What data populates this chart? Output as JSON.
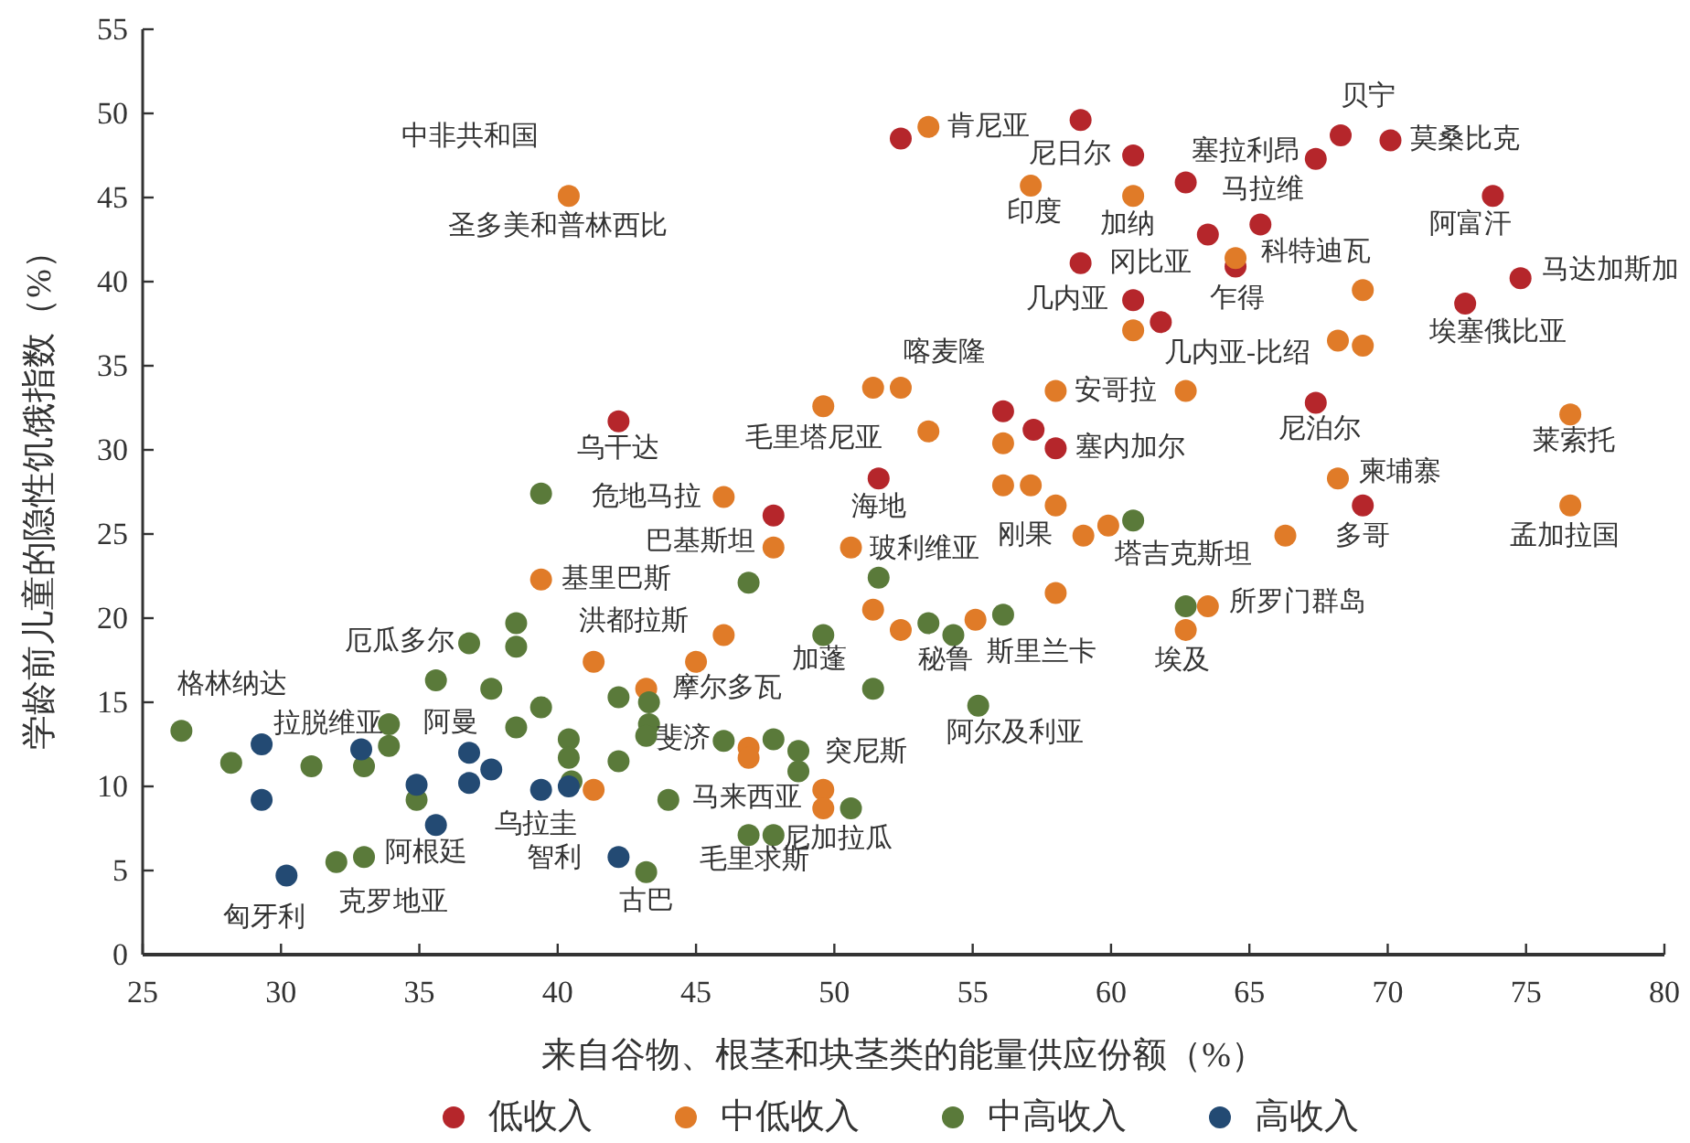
{
  "chart_data": {
    "type": "scatter",
    "xlabel": "来自谷物、根茎和块茎类的能量供应份额（%）",
    "ylabel": "学龄前儿童的隐性饥饿指数（%）",
    "xlim": [
      25,
      80
    ],
    "xticks": [
      25,
      30,
      35,
      40,
      45,
      50,
      55,
      60,
      65,
      70,
      75,
      80
    ],
    "ylim": [
      0,
      55
    ],
    "yticks": [
      0,
      5,
      10,
      15,
      20,
      25,
      30,
      35,
      40,
      45,
      50,
      55
    ],
    "grid": false,
    "legend": "bottom",
    "marker": "circle",
    "series": [
      {
        "name": "低收入",
        "color": "#b5262b",
        "x": [
          52.4,
          58.9,
          60.8,
          62.7,
          67.4,
          68.3,
          70.1,
          73.8,
          63.5,
          65.4,
          64.5,
          58.9,
          74.8,
          60.8,
          61.8,
          72.8,
          67.4,
          42.2,
          51.6,
          56.1,
          57.2,
          58.0,
          47.8,
          69.1
        ],
        "values": [
          48.5,
          49.6,
          47.5,
          45.9,
          47.3,
          48.7,
          48.4,
          45.1,
          42.8,
          43.4,
          40.9,
          41.1,
          40.2,
          38.9,
          37.6,
          38.7,
          32.8,
          31.7,
          28.3,
          32.3,
          31.2,
          30.1,
          26.1,
          26.7
        ]
      },
      {
        "name": "中低收入",
        "color": "#e07b28",
        "x": [
          40.4,
          53.4,
          57.1,
          60.8,
          64.5,
          69.1,
          60.8,
          68.2,
          69.1,
          49.6,
          51.4,
          52.4,
          53.4,
          58.0,
          62.7,
          56.1,
          68.2,
          76.6,
          76.6,
          46.0,
          47.8,
          50.6,
          56.1,
          57.1,
          58.0,
          59.0,
          59.9,
          66.3,
          58.0,
          63.5,
          62.7,
          39.4,
          41.3,
          46.0,
          45.0,
          51.4,
          52.4,
          55.1,
          43.2,
          46.9,
          46.9,
          41.3,
          49.6,
          49.6
        ],
        "values": [
          45.1,
          49.2,
          45.7,
          45.1,
          41.4,
          39.5,
          37.1,
          36.5,
          36.2,
          32.6,
          33.7,
          33.7,
          31.1,
          33.5,
          33.5,
          30.4,
          28.3,
          32.1,
          26.7,
          27.2,
          24.2,
          24.2,
          27.9,
          27.9,
          26.7,
          24.9,
          25.5,
          24.9,
          21.5,
          20.7,
          19.3,
          22.3,
          17.4,
          19.0,
          17.4,
          20.5,
          19.3,
          19.9,
          15.8,
          12.3,
          11.7,
          9.8,
          9.8,
          8.7
        ]
      },
      {
        "name": "中高收入",
        "color": "#5a7a3a",
        "x": [
          26.4,
          28.2,
          31.1,
          33.9,
          33.9,
          33.0,
          34.9,
          32.0,
          33.0,
          36.8,
          35.6,
          37.6,
          38.5,
          38.5,
          39.4,
          38.5,
          39.4,
          40.4,
          40.4,
          40.5,
          42.2,
          42.2,
          43.3,
          43.3,
          43.2,
          43.2,
          44.0,
          46.0,
          47.8,
          48.7,
          48.7,
          46.9,
          47.8,
          50.6,
          46.9,
          51.6,
          49.6,
          53.4,
          54.3,
          56.1,
          51.4,
          55.2,
          60.8,
          62.7
        ],
        "values": [
          13.3,
          11.4,
          11.2,
          13.7,
          12.4,
          11.2,
          9.2,
          5.5,
          5.8,
          18.5,
          16.3,
          15.8,
          19.7,
          18.3,
          14.7,
          13.5,
          27.4,
          12.8,
          11.7,
          10.3,
          15.3,
          11.5,
          15.0,
          13.7,
          13.0,
          4.9,
          9.2,
          12.7,
          12.8,
          12.1,
          10.9,
          7.1,
          7.1,
          8.7,
          22.1,
          22.4,
          19.0,
          19.7,
          19.0,
          20.2,
          15.8,
          14.8,
          25.8,
          20.7
        ]
      },
      {
        "name": "高收入",
        "color": "#234a73",
        "x": [
          30.2,
          29.3,
          29.3,
          32.9,
          34.9,
          35.6,
          36.8,
          36.8,
          37.6,
          39.4,
          40.4,
          42.2
        ],
        "values": [
          4.7,
          12.5,
          9.2,
          12.2,
          10.1,
          7.7,
          12.0,
          10.2,
          11.0,
          9.8,
          10.0,
          5.8
        ]
      }
    ],
    "annotations": [
      "中非共和国",
      {
        "text": "尼日尔",
        "x": 58.9,
        "y": 49.6
      },
      {
        "text": "塞拉利昂",
        "x": 60.8,
        "y": 47.5
      },
      {
        "text": "马拉维",
        "x": 67.4,
        "y": 47.3
      },
      {
        "text": "贝宁",
        "x": 68.3,
        "y": 48.7
      },
      {
        "text": "莫桑比克",
        "x": 70.1,
        "y": 48.4
      },
      {
        "text": "阿富汗",
        "x": 73.8,
        "y": 45.1
      },
      {
        "text": "乍得",
        "x": 64.5,
        "y": 40.9
      },
      {
        "text": "冈比亚",
        "x": 58.9,
        "y": 41.1
      },
      {
        "text": "马达加斯加",
        "x": 74.8,
        "y": 40.2
      },
      {
        "text": "几内亚",
        "x": 60.8,
        "y": 38.9
      },
      {
        "text": "埃塞俄比亚",
        "x": 72.8,
        "y": 38.7
      },
      {
        "text": "尼泊尔",
        "x": 67.4,
        "y": 32.8
      },
      {
        "text": "乌干达",
        "x": 42.2,
        "y": 31.7
      },
      {
        "text": "海地",
        "x": 51.6,
        "y": 28.3
      },
      {
        "text": "塞内加尔",
        "x": 58.0,
        "y": 30.1
      },
      {
        "text": "多哥",
        "x": 69.1,
        "y": 26.7
      },
      {
        "text": "圣多美和普林西比",
        "x": 40.4,
        "y": 45.1
      },
      {
        "text": "肯尼亚",
        "x": 53.4,
        "y": 49.2
      },
      {
        "text": "印度",
        "x": 57.1,
        "y": 45.7
      },
      {
        "text": "加纳",
        "x": 60.8,
        "y": 45.1
      },
      {
        "text": "科特迪瓦",
        "x": 64.5,
        "y": 41.4
      },
      {
        "text": "几内亚-比绍",
        "x": 60.8,
        "y": 37.1
      },
      {
        "text": "喀麦隆",
        "x": 52.4,
        "y": 33.7
      },
      {
        "text": "毛里塔尼亚",
        "x": 49.6,
        "y": 32.6
      },
      {
        "text": "安哥拉",
        "x": 58.0,
        "y": 33.5
      },
      {
        "text": "柬埔寨",
        "x": 68.2,
        "y": 28.3
      },
      {
        "text": "莱索托",
        "x": 76.6,
        "y": 32.1
      },
      {
        "text": "孟加拉国",
        "x": 76.6,
        "y": 26.7
      },
      {
        "text": "危地马拉",
        "x": 46.0,
        "y": 27.2
      },
      {
        "text": "巴基斯坦",
        "x": 47.8,
        "y": 24.2
      },
      {
        "text": "玻利维亚",
        "x": 50.6,
        "y": 24.2
      },
      {
        "text": "刚果",
        "x": 59.0,
        "y": 24.9
      },
      {
        "text": "塔吉克斯坦",
        "x": 59.9,
        "y": 25.5
      },
      {
        "text": "所罗门群岛",
        "x": 63.5,
        "y": 20.7
      },
      {
        "text": "埃及",
        "x": 62.7,
        "y": 19.3
      },
      {
        "text": "基里巴斯",
        "x": 39.4,
        "y": 22.3
      },
      {
        "text": "洪都拉斯",
        "x": 41.3,
        "y": 17.4
      },
      {
        "text": "摩尔多瓦",
        "x": 43.2,
        "y": 15.8
      },
      {
        "text": "斐济",
        "x": 46.0,
        "y": 12.7
      },
      {
        "text": "马来西亚",
        "x": 44.0,
        "y": 9.2
      },
      {
        "text": "突尼斯",
        "x": 48.7,
        "y": 12.1
      },
      {
        "text": "毛里求斯",
        "x": 46.9,
        "y": 7.1
      },
      {
        "text": "尼加拉瓜",
        "x": 49.6,
        "y": 8.7
      },
      {
        "text": "加蓬",
        "x": 49.6,
        "y": 19.0
      },
      {
        "text": "秘鲁",
        "x": 54.3,
        "y": 19.0
      },
      {
        "text": "斯里兰卡",
        "x": 56.1,
        "y": 20.2
      },
      {
        "text": "阿尔及利亚",
        "x": 55.2,
        "y": 14.8
      },
      {
        "text": "格林纳达",
        "x": 26.4,
        "y": 13.3
      },
      {
        "text": "拉脱维亚",
        "x": 33.9,
        "y": 13.7
      },
      {
        "text": "阿根廷",
        "x": 33.0,
        "y": 5.8
      },
      {
        "text": "克罗地亚",
        "x": 32.0,
        "y": 5.5
      },
      {
        "text": "厄瓜多尔",
        "x": 36.8,
        "y": 18.5
      },
      {
        "text": "古巴",
        "x": 43.2,
        "y": 4.9
      },
      {
        "text": "智利",
        "x": 42.2,
        "y": 5.8
      },
      {
        "text": "乌拉圭",
        "x": 39.4,
        "y": 9.8
      },
      {
        "text": "匈牙利",
        "x": 30.2,
        "y": 4.7
      },
      {
        "text": "阿曼",
        "x": 36.8,
        "y": 12.0
      }
    ]
  }
}
